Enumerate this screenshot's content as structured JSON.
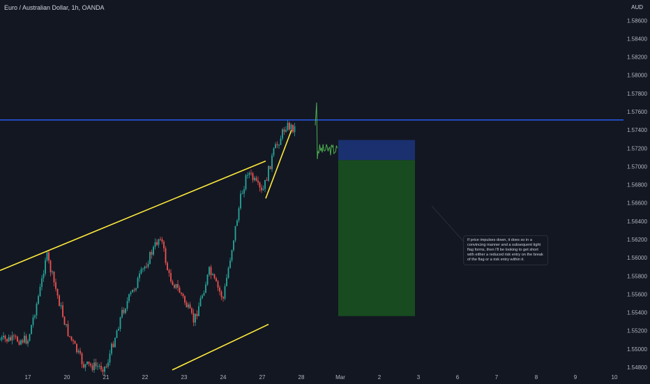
{
  "header": {
    "title": "Euro / Australian Dollar, 1h, OANDA",
    "currency": "AUD"
  },
  "annotation": {
    "text": "If price impulses down, it does so in a convincing manner and a subsequent tight flag forms, then I'll be looking to get short with either a reduced risk entry on the break of the flag or a risk entry within it."
  },
  "colors": {
    "background": "#131722",
    "up": "#26a69a",
    "down": "#ef5350",
    "resistance": "#2962ff",
    "trendline": "#ffeb3b",
    "projection": "#4caf50",
    "stop_zone": "#1e3a8a",
    "target_zone": "#1b5e20",
    "axis_text": "#b2b5be"
  },
  "chart_data": {
    "type": "candlestick",
    "title": "Euro / Australian Dollar, 1h, OANDA",
    "y_axis": {
      "label": "AUD",
      "ylim": [
        1.5475,
        1.5875
      ],
      "ticks": [
        "1.58600",
        "1.58400",
        "1.58200",
        "1.58000",
        "1.57800",
        "1.57600",
        "1.57400",
        "1.57200",
        "1.57000",
        "1.56800",
        "1.56600",
        "1.56400",
        "1.56200",
        "1.56000",
        "1.55800",
        "1.55600",
        "1.55400",
        "1.55200",
        "1.55000",
        "1.54800"
      ],
      "position": "right"
    },
    "x_axis": {
      "ticks": [
        "17",
        "20",
        "21",
        "22",
        "23",
        "24",
        "27",
        "28",
        "Mar",
        "2",
        "3",
        "6",
        "7",
        "8",
        "9",
        "10"
      ]
    },
    "price_path": [
      {
        "t": "17",
        "price": 1.551
      },
      {
        "t": "17.5",
        "price": 1.557
      },
      {
        "t": "17.9",
        "price": 1.5605
      },
      {
        "t": "20",
        "price": 1.552
      },
      {
        "t": "20.6",
        "price": 1.5482
      },
      {
        "t": "21",
        "price": 1.548
      },
      {
        "t": "21.4",
        "price": 1.554
      },
      {
        "t": "21.9",
        "price": 1.5625
      },
      {
        "t": "22.3",
        "price": 1.558
      },
      {
        "t": "22.7",
        "price": 1.556
      },
      {
        "t": "23.2",
        "price": 1.553
      },
      {
        "t": "23.6",
        "price": 1.5585
      },
      {
        "t": "24",
        "price": 1.5555
      },
      {
        "t": "24.5",
        "price": 1.56
      },
      {
        "t": "24.8",
        "price": 1.5665
      },
      {
        "t": "25",
        "price": 1.5695
      },
      {
        "t": "27",
        "price": 1.567
      },
      {
        "t": "27.3",
        "price": 1.5715
      },
      {
        "t": "27.6",
        "price": 1.5745
      },
      {
        "t": "27.9",
        "price": 1.5742
      }
    ],
    "horizontal_lines": [
      {
        "name": "resistance",
        "price": 1.5751
      }
    ],
    "trendlines": [
      {
        "name": "channel-top",
        "from": {
          "t": "16.5",
          "price": 1.5586
        },
        "to": {
          "t": "27.05",
          "price": 1.5706
        }
      },
      {
        "name": "channel-bottom",
        "from": {
          "t": "22.6",
          "price": 1.5477
        },
        "to": {
          "t": "24.9",
          "price": 1.5527
        }
      },
      {
        "name": "flag-support",
        "from": {
          "t": "27.05",
          "price": 1.5665
        },
        "to": {
          "t": "27.85",
          "price": 1.574
        }
      }
    ],
    "projection": {
      "spike_high": 1.577,
      "spike_low": 1.5708,
      "band": [
        1.5712,
        1.5725
      ]
    },
    "short_position": {
      "stop": 1.5729,
      "entry": 1.5707,
      "target": 1.5536
    },
    "grid": false,
    "legend": "none"
  }
}
